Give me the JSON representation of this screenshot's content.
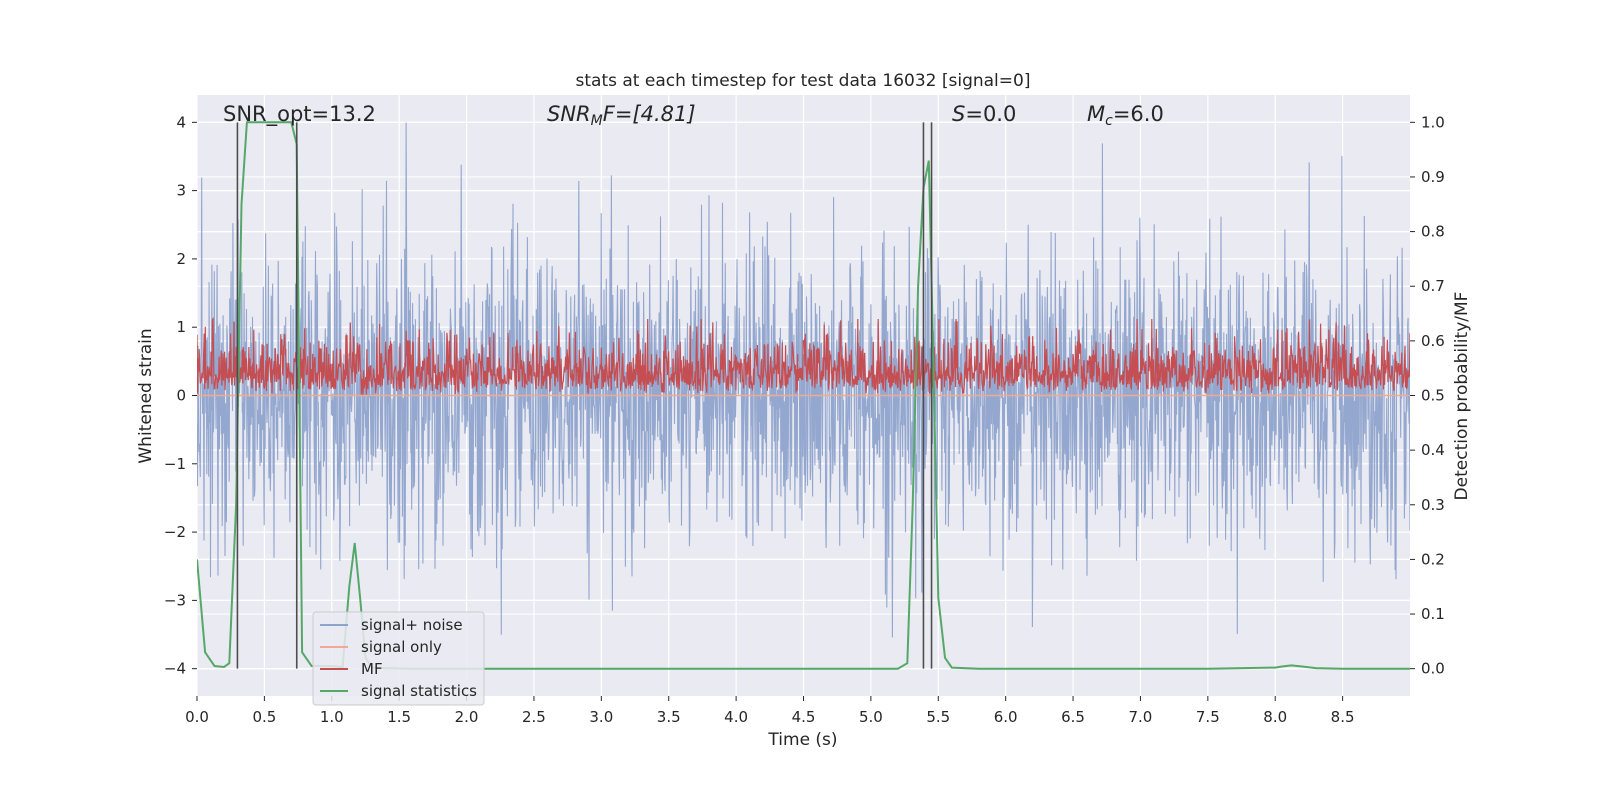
{
  "chart_data": {
    "type": "line",
    "title": "stats at each timestep for test data 16032 [signal=0]",
    "xlabel": "Time (s)",
    "ylabel_left": "Whitened strain",
    "ylabel_right": "Detection probability/MF",
    "xlim": [
      0.0,
      9.0
    ],
    "ylim_left": [
      -4.4,
      4.4
    ],
    "ylim_right": [
      -0.05,
      1.05
    ],
    "xticks": [
      "0.0",
      "0.5",
      "1.0",
      "1.5",
      "2.0",
      "2.5",
      "3.0",
      "3.5",
      "4.0",
      "4.5",
      "5.0",
      "5.5",
      "6.0",
      "6.5",
      "7.0",
      "7.5",
      "8.0",
      "8.5"
    ],
    "yticks_left": [
      "−4",
      "−3",
      "−2",
      "−1",
      "0",
      "1",
      "2",
      "3",
      "4"
    ],
    "yticks_right": [
      "0.0",
      "0.1",
      "0.2",
      "0.3",
      "0.4",
      "0.5",
      "0.6",
      "0.7",
      "0.8",
      "0.9",
      "1.0"
    ],
    "grid": true,
    "legend_position": "lower-left",
    "annotations": {
      "snr_opt": "SNR_opt=13.2",
      "snr_mf_main": "SNR",
      "snr_mf_sub": "M",
      "snr_mf_tail": "F=[4.81]",
      "s_main": "S",
      "s_tail": "=0.0",
      "mc_main": "M",
      "mc_sub": "c",
      "mc_tail": "=6.0"
    },
    "series": [
      {
        "name": "signal+ noise",
        "axis": "left",
        "color": "#8ea3cc",
        "style": "dense-noise",
        "amplitude_sigma": 1.0,
        "x_range": [
          0.0,
          9.0
        ]
      },
      {
        "name": "signal only",
        "axis": "left",
        "color": "#f2a98f",
        "x": [
          0.0,
          9.0
        ],
        "y": [
          0.0,
          0.0
        ]
      },
      {
        "name": "MF",
        "axis": "right",
        "color": "#c44e52",
        "style": "dense-noise",
        "baseline": 0.51,
        "band": [
          0.5,
          0.64
        ],
        "x_range": [
          0.0,
          9.0
        ]
      },
      {
        "name": "signal statistics",
        "axis": "right",
        "color": "#55a868",
        "x": [
          0.0,
          0.06,
          0.13,
          0.2,
          0.24,
          0.29,
          0.33,
          0.37,
          0.5,
          0.63,
          0.7,
          0.74,
          0.78,
          0.85,
          0.92,
          1.0,
          1.08,
          1.13,
          1.17,
          1.21,
          1.25,
          1.3,
          1.4,
          1.6,
          2.0,
          3.0,
          4.0,
          5.0,
          5.2,
          5.27,
          5.31,
          5.35,
          5.39,
          5.43,
          5.46,
          5.5,
          5.55,
          5.6,
          5.8,
          6.5,
          7.0,
          7.5,
          8.0,
          8.05,
          8.12,
          8.2,
          8.3,
          8.5,
          9.0
        ],
        "y": [
          0.2,
          0.03,
          0.005,
          0.003,
          0.01,
          0.3,
          0.85,
          1.0,
          1.0,
          1.0,
          1.0,
          0.96,
          0.03,
          0.005,
          0.005,
          0.005,
          0.003,
          0.15,
          0.23,
          0.13,
          0.02,
          0.002,
          0.001,
          0.0,
          0.0,
          0.0,
          0.0,
          0.0,
          0.0,
          0.01,
          0.3,
          0.7,
          0.88,
          0.93,
          0.6,
          0.13,
          0.02,
          0.002,
          0.0,
          0.0,
          0.0,
          0.0,
          0.002,
          0.004,
          0.006,
          0.004,
          0.001,
          0.0,
          0.0
        ]
      }
    ],
    "vertical_markers": [
      0.3,
      0.74,
      5.39,
      5.45
    ],
    "vertical_marker_color": "#4d4d4d"
  }
}
